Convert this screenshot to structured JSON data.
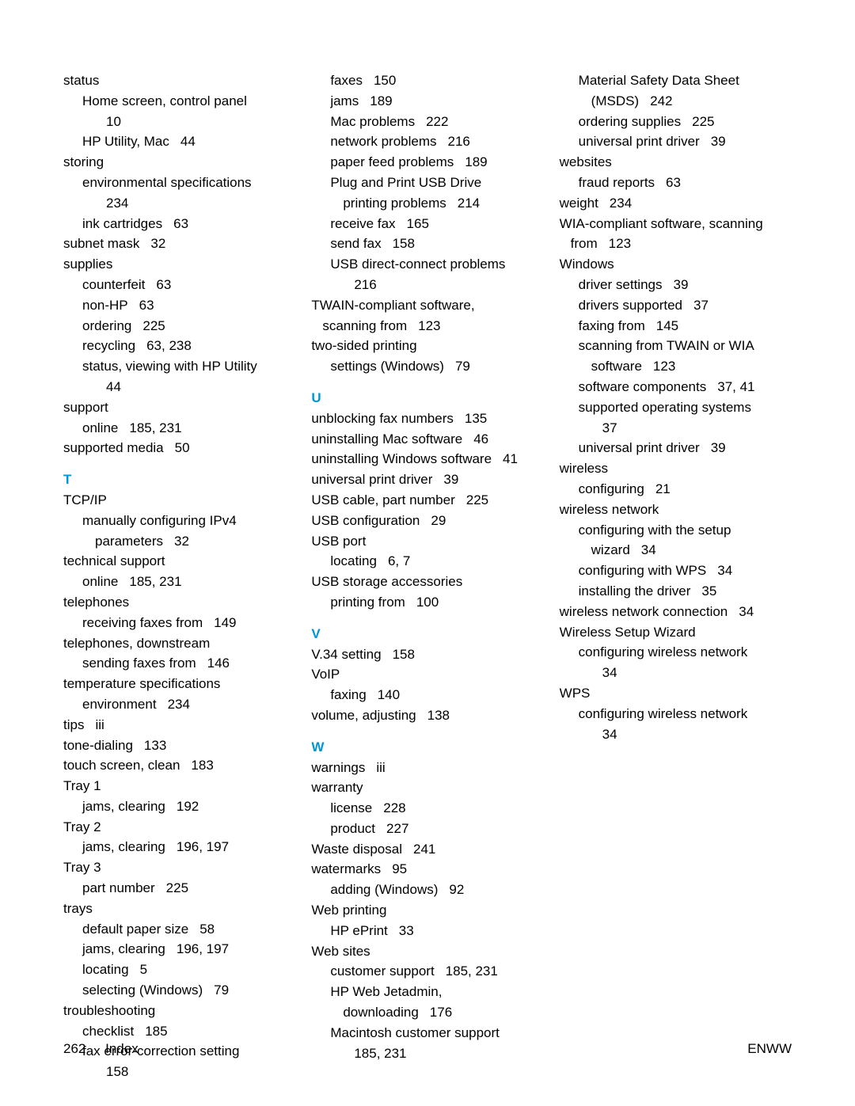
{
  "footer": {
    "page": "262",
    "section": "Index",
    "right": "ENWW"
  },
  "col1": [
    {
      "t": "main",
      "text": "status"
    },
    {
      "t": "sub",
      "text": "Home screen, control panel",
      "p": ""
    },
    {
      "t": "subsub",
      "text": "",
      "p": "10"
    },
    {
      "t": "sub",
      "text": "HP Utility, Mac",
      "p": "44"
    },
    {
      "t": "main",
      "text": "storing"
    },
    {
      "t": "sub",
      "text": "environmental specifications",
      "p": ""
    },
    {
      "t": "subsub",
      "text": "",
      "p": "234"
    },
    {
      "t": "sub",
      "text": "ink cartridges",
      "p": "63"
    },
    {
      "t": "main",
      "text": "subnet mask",
      "p": "32"
    },
    {
      "t": "main",
      "text": "supplies"
    },
    {
      "t": "sub",
      "text": "counterfeit",
      "p": "63"
    },
    {
      "t": "sub",
      "text": "non-HP",
      "p": "63"
    },
    {
      "t": "sub",
      "text": "ordering",
      "p": "225"
    },
    {
      "t": "sub",
      "text": "recycling",
      "p": "63, 238"
    },
    {
      "t": "sub",
      "text": "status, viewing with HP Utility",
      "p": ""
    },
    {
      "t": "subsub",
      "text": "",
      "p": "44"
    },
    {
      "t": "main",
      "text": "support"
    },
    {
      "t": "sub",
      "text": "online",
      "p": "185, 231"
    },
    {
      "t": "main",
      "text": "supported media",
      "p": "50"
    },
    {
      "t": "letter",
      "text": "T"
    },
    {
      "t": "main",
      "text": "TCP/IP"
    },
    {
      "t": "sub",
      "text": "manually configuring IPv4"
    },
    {
      "t": "subsub",
      "text": "parameters",
      "p": "32"
    },
    {
      "t": "main",
      "text": "technical support"
    },
    {
      "t": "sub",
      "text": "online",
      "p": "185, 231"
    },
    {
      "t": "main",
      "text": "telephones"
    },
    {
      "t": "sub",
      "text": "receiving faxes from",
      "p": "149"
    },
    {
      "t": "main",
      "text": "telephones, downstream"
    },
    {
      "t": "sub",
      "text": "sending faxes from",
      "p": "146"
    },
    {
      "t": "main",
      "text": "temperature specifications"
    },
    {
      "t": "sub",
      "text": "environment",
      "p": "234"
    },
    {
      "t": "main",
      "text": "tips",
      "p": "iii"
    },
    {
      "t": "main",
      "text": "tone-dialing",
      "p": "133"
    },
    {
      "t": "main",
      "text": "touch screen, clean",
      "p": "183"
    },
    {
      "t": "main",
      "text": "Tray 1"
    },
    {
      "t": "sub",
      "text": "jams, clearing",
      "p": "192"
    },
    {
      "t": "main",
      "text": "Tray 2"
    },
    {
      "t": "sub",
      "text": "jams, clearing",
      "p": "196, 197"
    },
    {
      "t": "main",
      "text": "Tray 3"
    },
    {
      "t": "sub",
      "text": "part number",
      "p": "225"
    },
    {
      "t": "main",
      "text": "trays"
    },
    {
      "t": "sub",
      "text": "default paper size",
      "p": "58"
    },
    {
      "t": "sub",
      "text": "jams, clearing",
      "p": "196, 197"
    },
    {
      "t": "sub",
      "text": "locating",
      "p": "5"
    },
    {
      "t": "sub",
      "text": "selecting (Windows)",
      "p": "79"
    },
    {
      "t": "main",
      "text": "troubleshooting"
    },
    {
      "t": "sub",
      "text": "checklist",
      "p": "185"
    },
    {
      "t": "sub",
      "text": "fax error-correction setting"
    },
    {
      "t": "subsub",
      "text": "",
      "p": "158"
    }
  ],
  "col2": [
    {
      "t": "sub",
      "text": "faxes",
      "p": "150"
    },
    {
      "t": "sub",
      "text": "jams",
      "p": "189"
    },
    {
      "t": "sub",
      "text": "Mac problems",
      "p": "222"
    },
    {
      "t": "sub",
      "text": "network problems",
      "p": "216"
    },
    {
      "t": "sub",
      "text": "paper feed problems",
      "p": "189"
    },
    {
      "t": "sub",
      "text": "Plug and Print USB Drive"
    },
    {
      "t": "subsub",
      "text": "printing problems",
      "p": "214"
    },
    {
      "t": "sub",
      "text": "receive fax",
      "p": "165"
    },
    {
      "t": "sub",
      "text": "send fax",
      "p": "158"
    },
    {
      "t": "sub",
      "text": "USB direct-connect problems"
    },
    {
      "t": "subsub",
      "text": "",
      "p": "216"
    },
    {
      "t": "main",
      "text": "TWAIN-compliant software,"
    },
    {
      "t": "mainind",
      "text": "scanning from",
      "p": "123"
    },
    {
      "t": "main",
      "text": "two-sided printing"
    },
    {
      "t": "sub",
      "text": "settings (Windows)",
      "p": "79"
    },
    {
      "t": "letter",
      "text": "U"
    },
    {
      "t": "main",
      "text": "unblocking fax numbers",
      "p": "135"
    },
    {
      "t": "main",
      "text": "uninstalling Mac software",
      "p": "46"
    },
    {
      "t": "main",
      "text": "uninstalling Windows software",
      "p": "41"
    },
    {
      "t": "main",
      "text": "universal print driver",
      "p": "39"
    },
    {
      "t": "main",
      "text": "USB cable, part number",
      "p": "225"
    },
    {
      "t": "main",
      "text": "USB configuration",
      "p": "29"
    },
    {
      "t": "main",
      "text": "USB port"
    },
    {
      "t": "sub",
      "text": "locating",
      "p": "6, 7"
    },
    {
      "t": "main",
      "text": "USB storage accessories"
    },
    {
      "t": "sub",
      "text": "printing from",
      "p": "100"
    },
    {
      "t": "letter",
      "text": "V"
    },
    {
      "t": "main",
      "text": "V.34 setting",
      "p": "158"
    },
    {
      "t": "main",
      "text": "VoIP"
    },
    {
      "t": "sub",
      "text": "faxing",
      "p": "140"
    },
    {
      "t": "main",
      "text": "volume, adjusting",
      "p": "138"
    },
    {
      "t": "letter",
      "text": "W"
    },
    {
      "t": "main",
      "text": "warnings",
      "p": "iii"
    },
    {
      "t": "main",
      "text": "warranty"
    },
    {
      "t": "sub",
      "text": "license",
      "p": "228"
    },
    {
      "t": "sub",
      "text": "product",
      "p": "227"
    },
    {
      "t": "main",
      "text": "Waste disposal",
      "p": "241"
    },
    {
      "t": "main",
      "text": "watermarks",
      "p": "95"
    },
    {
      "t": "sub",
      "text": "adding (Windows)",
      "p": "92"
    },
    {
      "t": "main",
      "text": "Web printing"
    },
    {
      "t": "sub",
      "text": "HP ePrint",
      "p": "33"
    },
    {
      "t": "main",
      "text": "Web sites"
    },
    {
      "t": "sub",
      "text": "customer support",
      "p": "185, 231"
    },
    {
      "t": "sub",
      "text": "HP Web Jetadmin,"
    },
    {
      "t": "subsub",
      "text": "downloading",
      "p": "176"
    },
    {
      "t": "sub",
      "text": "Macintosh customer support"
    },
    {
      "t": "subsub",
      "text": "",
      "p": "185, 231"
    }
  ],
  "col3": [
    {
      "t": "sub",
      "text": "Material Safety Data Sheet"
    },
    {
      "t": "subsub",
      "text": "(MSDS)",
      "p": "242"
    },
    {
      "t": "sub",
      "text": "ordering supplies",
      "p": "225"
    },
    {
      "t": "sub",
      "text": "universal print driver",
      "p": "39"
    },
    {
      "t": "main",
      "text": "websites"
    },
    {
      "t": "sub",
      "text": "fraud reports",
      "p": "63"
    },
    {
      "t": "main",
      "text": "weight",
      "p": "234"
    },
    {
      "t": "main",
      "text": "WIA-compliant software, scanning"
    },
    {
      "t": "mainind",
      "text": "from",
      "p": "123"
    },
    {
      "t": "main",
      "text": "Windows"
    },
    {
      "t": "sub",
      "text": "driver settings",
      "p": "39"
    },
    {
      "t": "sub",
      "text": "drivers supported",
      "p": "37"
    },
    {
      "t": "sub",
      "text": "faxing from",
      "p": "145"
    },
    {
      "t": "sub",
      "text": "scanning from TWAIN or WIA"
    },
    {
      "t": "subsub",
      "text": "software",
      "p": "123"
    },
    {
      "t": "sub",
      "text": "software components",
      "p": "37, 41"
    },
    {
      "t": "sub",
      "text": "supported operating systems"
    },
    {
      "t": "subsub",
      "text": "",
      "p": "37"
    },
    {
      "t": "sub",
      "text": "universal print driver",
      "p": "39"
    },
    {
      "t": "main",
      "text": "wireless"
    },
    {
      "t": "sub",
      "text": "configuring",
      "p": "21"
    },
    {
      "t": "main",
      "text": "wireless network"
    },
    {
      "t": "sub",
      "text": "configuring with the setup"
    },
    {
      "t": "subsub",
      "text": "wizard",
      "p": "34"
    },
    {
      "t": "sub",
      "text": "configuring with WPS",
      "p": "34"
    },
    {
      "t": "sub",
      "text": "installing the driver",
      "p": "35"
    },
    {
      "t": "main",
      "text": "wireless network connection",
      "p": "34"
    },
    {
      "t": "main",
      "text": "Wireless Setup Wizard"
    },
    {
      "t": "sub",
      "text": "configuring wireless network"
    },
    {
      "t": "subsub",
      "text": "",
      "p": "34"
    },
    {
      "t": "main",
      "text": "WPS"
    },
    {
      "t": "sub",
      "text": "configuring wireless network"
    },
    {
      "t": "subsub",
      "text": "",
      "p": "34"
    }
  ]
}
